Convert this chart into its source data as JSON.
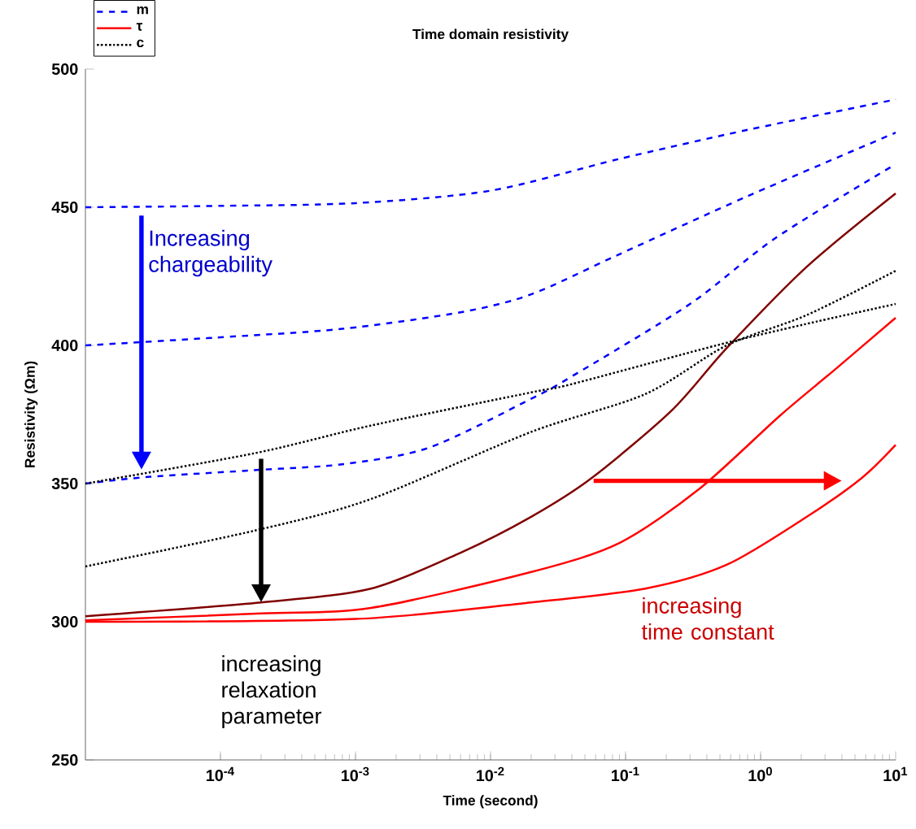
{
  "chart_data": {
    "type": "line",
    "title": "Time domain resistivity",
    "xlabel": "Time (second)",
    "ylabel": "Resistivity (Ωm)",
    "log": "x",
    "xlim": [
      1e-05,
      10
    ],
    "ylim": [
      250,
      500
    ],
    "xticks": [
      {
        "value": 0.0001,
        "label": "10$^{-4}$"
      },
      {
        "value": 0.001,
        "label": "10$^{-3}$"
      },
      {
        "value": 0.01,
        "label": "10$^{-2}$"
      },
      {
        "value": 0.1,
        "label": "10$^{-1}$"
      },
      {
        "value": 1,
        "label": "10$^{0}$"
      },
      {
        "value": 10,
        "label": "10$^{1}$"
      }
    ],
    "yticks": [
      250,
      300,
      350,
      400,
      450,
      500
    ],
    "grid": false,
    "legend": "top left",
    "marker": "none",
    "series": [
      {
        "name": "m",
        "color": "#0000ff",
        "line_style": "dashed",
        "x": [
          1e-05,
          0.0001,
          0.001,
          0.01,
          0.09,
          0.8,
          10
        ],
        "values": [
          450,
          450.5,
          451.5,
          456,
          467.5,
          478,
          489
        ]
      },
      {
        "color": "#0000ff",
        "line_style": "dashed",
        "x": [
          1e-05,
          9e-05,
          0.0008,
          0.006,
          0.02,
          0.09,
          0.8,
          10
        ],
        "values": [
          400,
          402.8,
          406,
          412,
          418.5,
          433,
          454,
          477
        ]
      },
      {
        "color": "#0000ff",
        "line_style": "dashed",
        "x": [
          1e-05,
          2.9e-05,
          0.0002,
          0.0008,
          0.0035,
          0.02,
          0.04,
          0.3,
          1.3,
          10
        ],
        "values": [
          350,
          352.4,
          355,
          357,
          363,
          380.7,
          388.8,
          415,
          439,
          465.6
        ]
      },
      {
        "color": "#800000",
        "line_style": "solid",
        "x": [
          1e-05,
          0.0002,
          0.0013,
          0.006,
          0.02,
          0.056,
          0.22,
          0.56,
          2.2,
          10
        ],
        "values": [
          302,
          307,
          312,
          325,
          338,
          352,
          376.5,
          399,
          428.5,
          455
        ]
      },
      {
        "name": "τ",
        "color": "#ff0000",
        "line_style": "solid",
        "x": [
          1e-05,
          0.0002,
          0.0013,
          0.02,
          0.09,
          0.35,
          1.4,
          3.5,
          10
        ],
        "values": [
          300.5,
          303,
          305,
          318,
          328.5,
          348,
          374.7,
          391,
          410
        ]
      },
      {
        "color": "#ff0000",
        "line_style": "solid",
        "x": [
          1e-05,
          0.001,
          0.02,
          0.14,
          0.56,
          2.2,
          5.6,
          10
        ],
        "values": [
          300,
          301,
          307,
          312,
          320.6,
          338,
          352,
          364
        ]
      },
      {
        "name": "c",
        "color": "#000000",
        "line_style": "dotted",
        "x": [
          1e-05,
          0.00018,
          0.0013,
          0.02,
          0.04,
          0.47,
          2.1,
          10
        ],
        "values": [
          350,
          361,
          371,
          383,
          386,
          400,
          407.6,
          415
        ]
      },
      {
        "color": "#000000",
        "line_style": "dotted",
        "x": [
          1e-05,
          0.00018,
          0.0013,
          0.02,
          0.14,
          0.56,
          2.2,
          10
        ],
        "values": [
          320,
          333,
          344.4,
          368.7,
          382.4,
          400,
          411,
          427
        ]
      }
    ],
    "annotations": [
      "Increasing chargeability",
      "increasing relaxation parameter",
      "increasing time constant"
    ]
  }
}
